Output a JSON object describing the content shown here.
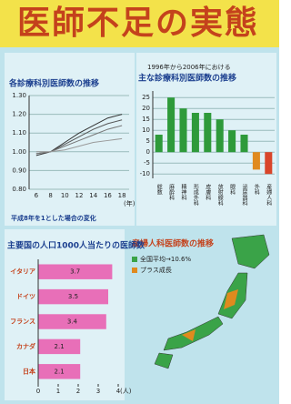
{
  "title": "医師不足の実態",
  "chart_data": [
    {
      "type": "line",
      "title": "各診療科別医師数の推移",
      "note": "平成8年を1とした場合の変化",
      "x_label": "(年)",
      "categories": [
        "6",
        "8",
        "10",
        "12",
        "14",
        "16",
        "18"
      ],
      "series": [
        {
          "color": "#333333",
          "values": [
            0.98,
            1.0,
            1.05,
            1.1,
            1.14,
            1.18,
            1.2
          ]
        },
        {
          "color": "#555555",
          "values": [
            0.99,
            1.0,
            1.04,
            1.08,
            1.12,
            1.15,
            1.17
          ]
        },
        {
          "color": "#777777",
          "values": [
            0.99,
            1.0,
            1.03,
            1.06,
            1.09,
            1.12,
            1.14
          ]
        },
        {
          "color": "#999999",
          "values": [
            1.0,
            1.0,
            1.01,
            1.03,
            1.05,
            1.06,
            1.07
          ]
        }
      ],
      "ylim": [
        0.8,
        1.3
      ],
      "yticks": [
        {
          "value": 0.8,
          "label": "0.80"
        },
        {
          "value": 0.9,
          "label": "0.90"
        },
        {
          "value": 1,
          "label": "1.00"
        },
        {
          "value": 1.1,
          "label": "1.10"
        },
        {
          "value": 1.2,
          "label": "1.20"
        },
        {
          "value": 1.3,
          "label": "1.30"
        }
      ],
      "grid": true
    },
    {
      "type": "bar",
      "subtitle": "1996年から2006年における",
      "title": "主な診療科別医師数の推移",
      "categories": [
        "総数",
        "麻酔科",
        "精神科",
        "形成外科",
        "皮膚科",
        "放射線科",
        "眼科",
        "泌尿器科",
        "外科",
        "産婦人科"
      ],
      "values": [
        8,
        25,
        20,
        18,
        18,
        15,
        10,
        8,
        -8,
        -10
      ],
      "colors": [
        "#2e9a3a",
        "#2e9a3a",
        "#2e9a3a",
        "#2e9a3a",
        "#2e9a3a",
        "#2e9a3a",
        "#2e9a3a",
        "#2e9a3a",
        "#e08a1e",
        "#d9452a"
      ],
      "ylim": [
        -12,
        28
      ],
      "yticks": [
        -10,
        -5,
        0,
        5,
        10,
        15,
        20,
        25
      ],
      "grid": true
    },
    {
      "type": "hbar",
      "title": "主要国の人口1000人当たりの医師数",
      "x_label": "(人)",
      "categories": [
        "イタリア",
        "ドイツ",
        "フランス",
        "カナダ",
        "日本"
      ],
      "values": [
        3.7,
        3.5,
        3.4,
        2.1,
        2.1
      ],
      "color": "#e86fb8",
      "xlim": [
        0,
        4
      ],
      "xticks": [
        0,
        1,
        2,
        3,
        4
      ]
    }
  ],
  "map": {
    "title": "産婦人科医師数の推移",
    "legend": [
      "全国平均→10.6%",
      "プラス成長"
    ]
  }
}
